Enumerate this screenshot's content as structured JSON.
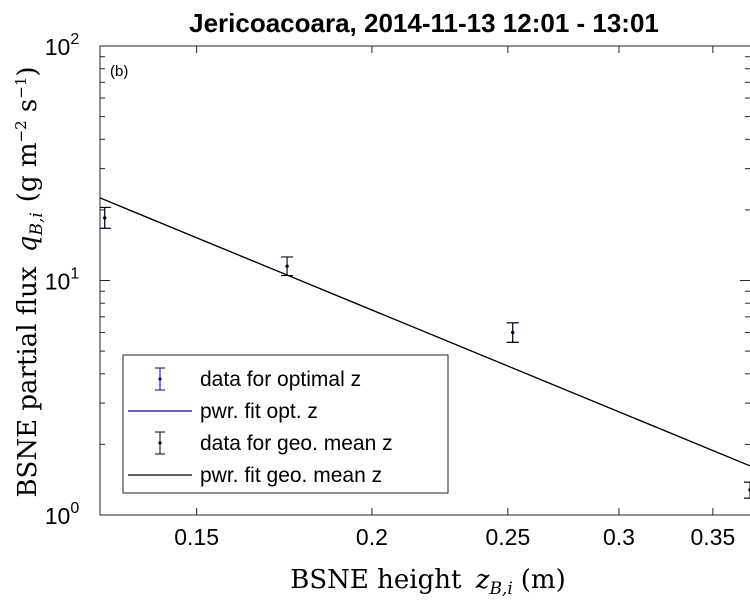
{
  "chart_data": {
    "type": "scatter",
    "title": "Jericoacoara, 2014-11-13 12:01 - 13:01",
    "panel_label": "(b)",
    "xlabel": {
      "main": "BSNE height",
      "var": "z",
      "sub": "B,i",
      "unit": "(m)"
    },
    "ylabel": {
      "main": "BSNE partial flux",
      "var": "q",
      "sub": "B,i",
      "unit_open": "(g m",
      "unit_exp1": "−2",
      "unit_mid": " s",
      "unit_exp2": "−1",
      "unit_close": ")"
    },
    "xscale": "log",
    "yscale": "log",
    "xlim": [
      0.128,
      0.372
    ],
    "ylim": [
      1,
      100
    ],
    "xticks": [
      0.15,
      0.2,
      0.25,
      0.3,
      0.35
    ],
    "xtick_labels": [
      "0.15",
      "0.2",
      "0.25",
      "0.3",
      "0.35"
    ],
    "yticks": [
      {
        "value": 1,
        "base": "10",
        "exp": "0"
      },
      {
        "value": 10,
        "base": "10",
        "exp": "1"
      },
      {
        "value": 100,
        "base": "10",
        "exp": "2"
      }
    ],
    "grid": false,
    "legend_position": "bottom-left",
    "series": [
      {
        "name": "data for optimal z",
        "kind": "errorbar",
        "color": "#0000b8",
        "x": [
          0.129,
          0.174,
          0.252,
          0.372
        ],
        "y": [
          18.5,
          11.5,
          6.0,
          1.28
        ],
        "yerr_low": [
          16.7,
          10.5,
          5.45,
          1.18
        ],
        "yerr_high": [
          20.5,
          12.6,
          6.6,
          1.38
        ]
      },
      {
        "name": "pwr. fit opt. z",
        "kind": "line",
        "color": "#0000b8",
        "x": [
          0.128,
          0.372
        ],
        "y": [
          22.5,
          1.62
        ]
      },
      {
        "name": "data for geo. mean z",
        "kind": "errorbar",
        "color": "#000000",
        "x": [
          0.129,
          0.174,
          0.252,
          0.372
        ],
        "y": [
          18.5,
          11.5,
          6.0,
          1.28
        ],
        "yerr_low": [
          16.7,
          10.5,
          5.45,
          1.18
        ],
        "yerr_high": [
          20.5,
          12.6,
          6.6,
          1.38
        ]
      },
      {
        "name": "pwr. fit geo. mean z",
        "kind": "line",
        "color": "#000000",
        "x": [
          0.128,
          0.372
        ],
        "y": [
          22.5,
          1.62
        ]
      }
    ]
  }
}
